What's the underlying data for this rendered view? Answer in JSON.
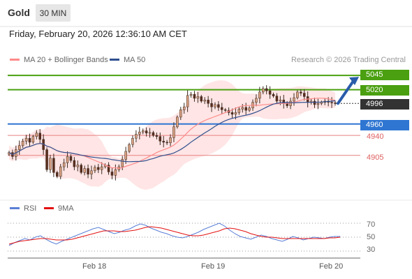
{
  "header": {
    "instrument": "Gold",
    "timeframe": "30 MIN"
  },
  "timestamp": "Friday, February 20, 2026 12:36:10 AM CET",
  "legend": {
    "ma20": {
      "label": "MA 20 + Bollinger Bands",
      "color": "#ff7f7f"
    },
    "ma50": {
      "label": "MA 50",
      "color": "#2f4f8f"
    },
    "rsi": {
      "label": "RSI",
      "color": "#5a7fd6"
    },
    "rsi_ma": {
      "label": "9MA",
      "color": "#e41010"
    }
  },
  "credit": "Research © 2026 Trading Central",
  "levels": [
    {
      "value": "5045",
      "kind": "resistance",
      "color": "#4aa010"
    },
    {
      "value": "5020",
      "kind": "resistance",
      "color": "#4aa010"
    },
    {
      "value": "4996",
      "kind": "last",
      "color": "#333333"
    },
    {
      "value": "4960",
      "kind": "pivot",
      "color": "#2f76d2"
    },
    {
      "value": "4940",
      "kind": "support",
      "color": "#e06060"
    },
    {
      "value": "4905",
      "kind": "support",
      "color": "#e06060"
    }
  ],
  "rsi_ticks": [
    "70",
    "50",
    "30"
  ],
  "x_ticks": [
    "Feb 18",
    "Feb 19",
    "Feb 20"
  ],
  "chart_data": {
    "type": "candlestick",
    "title": "Gold",
    "timeframe": "30 MIN",
    "ylim": [
      4835,
      5055
    ],
    "horizontal_levels": [
      5045,
      5020,
      4960,
      4940,
      4905
    ],
    "last_price": 4996,
    "projection": {
      "from": 4996,
      "to": 5045,
      "direction": "up"
    },
    "price_path": [
      4910,
      4903,
      4915,
      4922,
      4930,
      4935,
      4928,
      4938,
      4944,
      4933,
      4915,
      4880,
      4900,
      4875,
      4868,
      4885,
      4892,
      4903,
      4896,
      4885,
      4888,
      4875,
      4882,
      4872,
      4878,
      4884,
      4880,
      4885,
      4888,
      4876,
      4870,
      4880,
      4885,
      4898,
      4912,
      4924,
      4935,
      4942,
      4946,
      4948,
      4944,
      4945,
      4940,
      4938,
      4930,
      4928,
      4927,
      4936,
      4955,
      4972,
      4985,
      4990,
      5010,
      5012,
      5005,
      5008,
      5000,
      5002,
      4996,
      4990,
      4994,
      4989,
      4985,
      4984,
      4980,
      4977,
      4980,
      4986,
      4989,
      4984,
      4988,
      4998,
      5005,
      5016,
      5022,
      5018,
      5012,
      5009,
      5000,
      5002,
      4996,
      4992,
      5000,
      5006,
      5016,
      5014,
      5008,
      4998,
      5000,
      4994,
      4996,
      4998,
      5000,
      4998,
      4997,
      4996
    ],
    "rsi": {
      "ylim": [
        20,
        80
      ],
      "levels": [
        70,
        50,
        30
      ],
      "series": [
        {
          "name": "RSI",
          "values": [
            38,
            42,
            45,
            48,
            46,
            50,
            52,
            47,
            43,
            40,
            44,
            47,
            50,
            53,
            56,
            59,
            62,
            64,
            61,
            58,
            55,
            57,
            60,
            62,
            66,
            69,
            67,
            63,
            60,
            57,
            55,
            52,
            50,
            49,
            51,
            54,
            57,
            61,
            64,
            67,
            70,
            66,
            60,
            55,
            51,
            49,
            47,
            50,
            53,
            51,
            48,
            46,
            44,
            47,
            51,
            49,
            46,
            48,
            50,
            49,
            48,
            50,
            51,
            51
          ]
        },
        {
          "name": "9MA",
          "values": [
            40,
            42,
            44,
            45,
            46,
            47,
            48,
            48,
            47,
            46,
            46,
            46,
            47,
            49,
            51,
            53,
            55,
            57,
            59,
            59,
            59,
            58,
            58,
            59,
            60,
            62,
            64,
            65,
            64,
            63,
            61,
            59,
            57,
            55,
            53,
            52,
            52,
            53,
            55,
            57,
            59,
            62,
            63,
            62,
            60,
            58,
            55,
            53,
            51,
            50,
            50,
            49,
            48,
            48,
            48,
            48,
            48,
            48,
            48,
            48,
            48,
            49,
            49,
            50
          ]
        }
      ]
    }
  }
}
